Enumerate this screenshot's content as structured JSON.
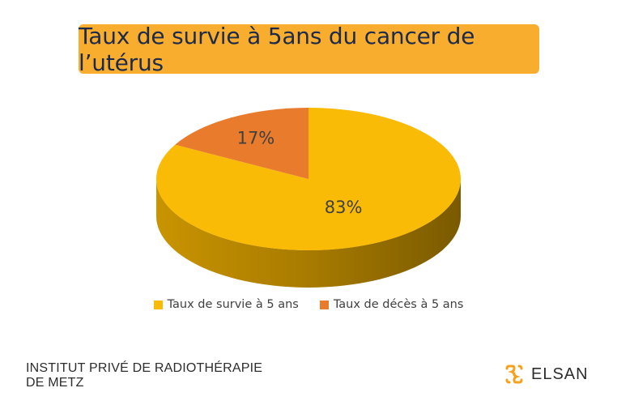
{
  "header": {
    "title": "Taux de survie à 5ans du cancer de l’utérus"
  },
  "chart_data": {
    "type": "pie",
    "style": "3d",
    "title": "",
    "slices": [
      {
        "label": "Taux de survie à 5 ans",
        "value": 83,
        "data_label": "83%",
        "color": "#f9bb05",
        "side_color": "#b08100"
      },
      {
        "label": "Taux de décès à 5 ans",
        "value": 17,
        "data_label": "17%",
        "color": "#e87b2c",
        "side_color": "#a8561c"
      }
    ],
    "legend_position": "bottom"
  },
  "footer": {
    "institute_line1": "INSTITUT PRIVÉ DE RADIOTHÉRAPIE",
    "institute_line2": "DE METZ",
    "brand": "ELSAN",
    "brand_logo_color": "#f2a21f"
  }
}
